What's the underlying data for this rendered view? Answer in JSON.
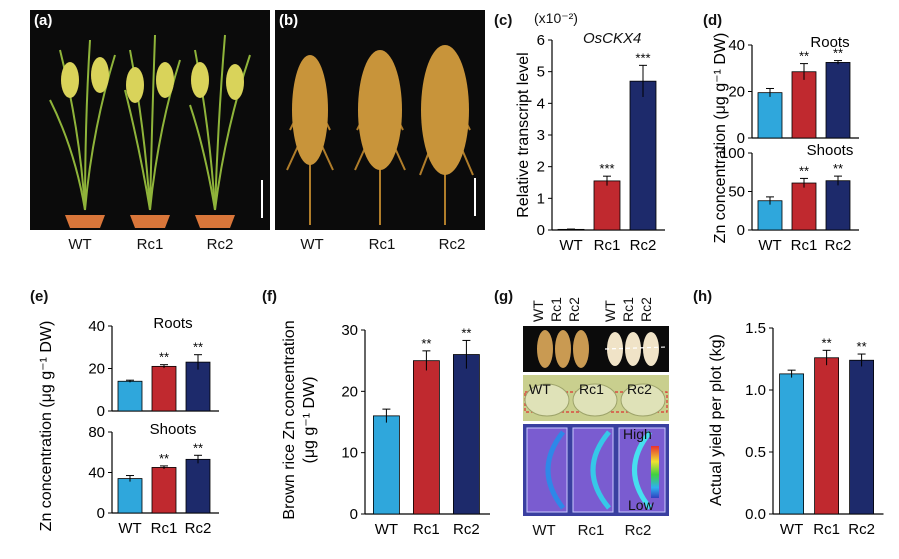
{
  "panels": {
    "a": {
      "letter": "(a)",
      "labels": [
        "WT",
        "Rc1",
        "Rc2"
      ]
    },
    "b": {
      "letter": "(b)",
      "labels": [
        "WT",
        "Rc1",
        "Rc2"
      ]
    },
    "g": {
      "letter": "(g)",
      "top_labels": [
        "WT",
        "Rc1",
        "Rc2",
        "WT",
        "Rc1",
        "Rc2"
      ],
      "section_labels": [
        "WT",
        "Rc1",
        "Rc2"
      ],
      "scale_high": "High",
      "scale_low": "Low",
      "labels": [
        "WT",
        "Rc1",
        "Rc2"
      ]
    }
  },
  "colors": {
    "WT": "#2fa7dc",
    "Rc1": "#c0292f",
    "Rc2": "#1d2a6b"
  },
  "chart_data": [
    {
      "id": "c",
      "letter": "(c)",
      "type": "bar",
      "categories": [
        "WT",
        "Rc1",
        "Rc2"
      ],
      "values": [
        0.02,
        1.55,
        4.7
      ],
      "errors": [
        0.01,
        0.15,
        0.5
      ],
      "sig": [
        "",
        "***",
        "***"
      ],
      "title": "OsCKX4",
      "multiplier": "(x10⁻²)",
      "ylabel": "Relative transcript level",
      "ylim": [
        0,
        6
      ],
      "yticks": [
        0,
        1,
        2,
        3,
        4,
        5,
        6
      ]
    },
    {
      "id": "d",
      "letter": "(d)",
      "type": "bar",
      "stacked_panels": [
        {
          "subtitle": "Roots",
          "categories": [
            "WT",
            "Rc1",
            "Rc2"
          ],
          "values": [
            19.5,
            28.5,
            32.5
          ],
          "errors": [
            1.8,
            3.5,
            0.8
          ],
          "sig": [
            "",
            "**",
            "**"
          ],
          "ylim": [
            0,
            40
          ],
          "yticks": [
            0,
            20,
            40
          ]
        },
        {
          "subtitle": "Shoots",
          "categories": [
            "WT",
            "Rc1",
            "Rc2"
          ],
          "values": [
            38,
            61,
            64
          ],
          "errors": [
            5,
            6,
            6
          ],
          "sig": [
            "",
            "**",
            "**"
          ],
          "ylim": [
            0,
            100
          ],
          "yticks": [
            0,
            50,
            100
          ]
        }
      ],
      "ylabel": "Zn concentration (μg g⁻¹ DW)"
    },
    {
      "id": "e",
      "letter": "(e)",
      "type": "bar",
      "stacked_panels": [
        {
          "subtitle": "Roots",
          "categories": [
            "WT",
            "Rc1",
            "Rc2"
          ],
          "values": [
            14,
            21,
            23
          ],
          "errors": [
            0.5,
            0.8,
            3.5
          ],
          "sig": [
            "",
            "**",
            "**"
          ],
          "ylim": [
            0,
            40
          ],
          "yticks": [
            0,
            20,
            40
          ]
        },
        {
          "subtitle": "Shoots",
          "categories": [
            "WT",
            "Rc1",
            "Rc2"
          ],
          "values": [
            34,
            45,
            53
          ],
          "errors": [
            3,
            1.5,
            4
          ],
          "sig": [
            "",
            "**",
            "**"
          ],
          "ylim": [
            0,
            80
          ],
          "yticks": [
            0,
            40,
            80
          ]
        }
      ],
      "ylabel": "Zn concentration (μg g⁻¹ DW)"
    },
    {
      "id": "f",
      "letter": "(f)",
      "type": "bar",
      "categories": [
        "WT",
        "Rc1",
        "Rc2"
      ],
      "values": [
        16,
        25,
        26
      ],
      "errors": [
        1.1,
        1.6,
        2.3
      ],
      "sig": [
        "",
        "**",
        "**"
      ],
      "ylabel_line1": "Brown rice Zn concentration",
      "ylabel_line2": "(μg g⁻¹ DW)",
      "ylim": [
        0,
        30
      ],
      "yticks": [
        0,
        10,
        20,
        30
      ]
    },
    {
      "id": "h",
      "letter": "(h)",
      "type": "bar",
      "categories": [
        "WT",
        "Rc1",
        "Rc2"
      ],
      "values": [
        1.13,
        1.26,
        1.24
      ],
      "errors": [
        0.03,
        0.06,
        0.05
      ],
      "sig": [
        "",
        "**",
        "**"
      ],
      "ylabel": "Actual yield per plot (kg)",
      "ylim": [
        0,
        1.5
      ],
      "yticks": [
        "0.0",
        "0.5",
        "1.0",
        "1.5"
      ]
    }
  ]
}
